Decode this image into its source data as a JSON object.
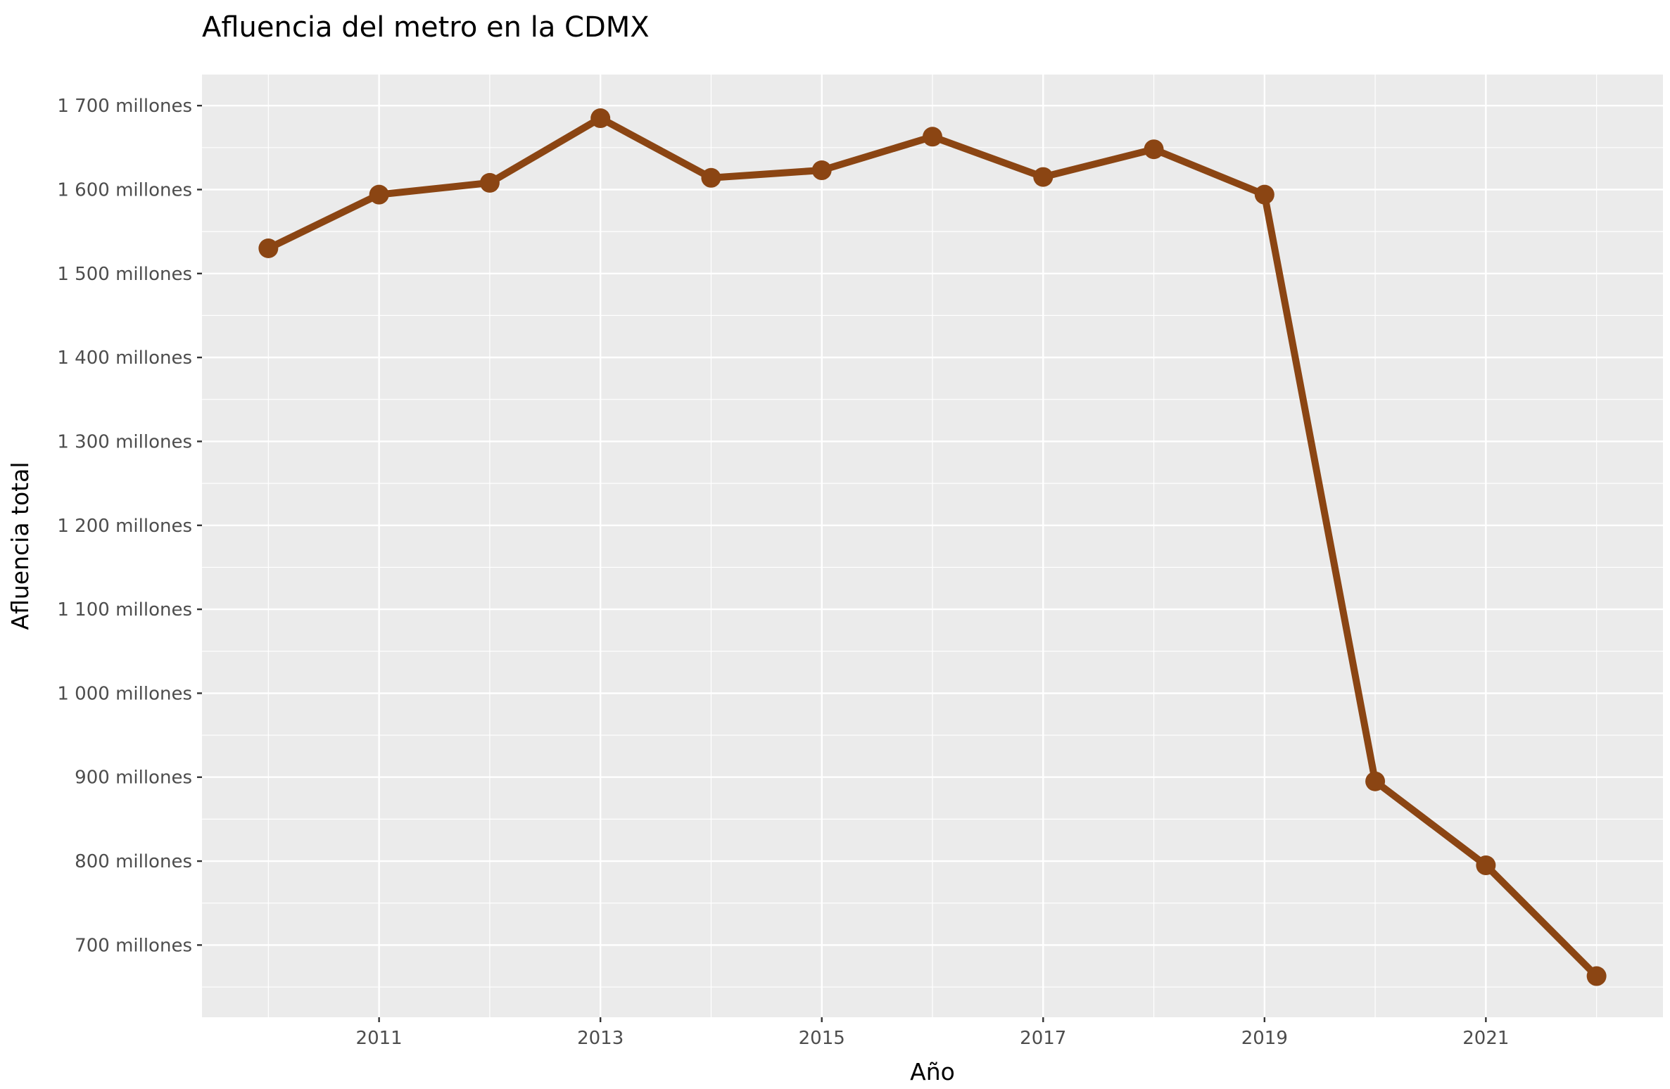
{
  "chart_data": {
    "type": "line",
    "title": "Afluencia del metro en la CDMX",
    "xlabel": "Año",
    "ylabel": "Afluencia total",
    "x": [
      2010,
      2011,
      2012,
      2013,
      2014,
      2015,
      2016,
      2017,
      2018,
      2019,
      2020,
      2021,
      2022
    ],
    "series": [
      {
        "name": "Afluencia total",
        "values": [
          1530,
          1594,
          1608,
          1685,
          1614,
          1623,
          1663,
          1615,
          1648,
          1594,
          895,
          795,
          663
        ]
      }
    ],
    "value_unit": "millones",
    "xlim": [
      2009.4,
      2022.6
    ],
    "ylim": [
      614,
      1737
    ],
    "x_ticks": [
      2011,
      2013,
      2015,
      2017,
      2019,
      2021
    ],
    "x_tick_labels": [
      "2011",
      "2013",
      "2015",
      "2017",
      "2019",
      "2021"
    ],
    "y_ticks": [
      700,
      800,
      900,
      1000,
      1100,
      1200,
      1300,
      1400,
      1500,
      1600,
      1700
    ],
    "y_tick_labels": [
      "700 millones",
      "800 millones",
      "900 millones",
      "1 000 millones",
      "1 100 millones",
      "1 200 millones",
      "1 300 millones",
      "1 400 millones",
      "1 500 millones",
      "1 600 millones",
      "1 700 millones"
    ],
    "grid": true,
    "legend": "none",
    "colors": {
      "line": "#8B4513",
      "panel_background": "#EBEBEB",
      "grid": "#FFFFFF",
      "tick_label": "#4D4D4D",
      "text": "#000000"
    }
  }
}
